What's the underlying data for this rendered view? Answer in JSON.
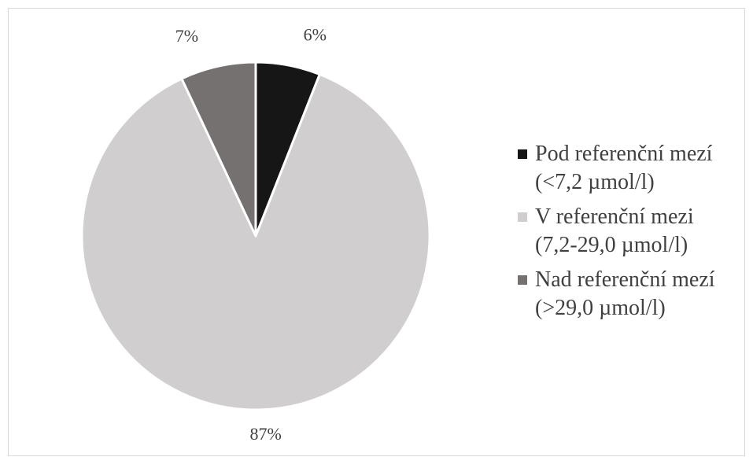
{
  "chart_data": {
    "type": "pie",
    "title": "",
    "slices": [
      {
        "label": "Pod referenční mezí\n(<7,2 µmol/l)",
        "value": 6,
        "value_label": "6%",
        "color": "#161616"
      },
      {
        "label": "V referenční mezi\n(7,2-29,0  µmol/l)",
        "value": 87,
        "value_label": "87%",
        "color": "#d0cecf"
      },
      {
        "label": "Nad referenční mezí\n(>29,0  µmol/l)",
        "value": 7,
        "value_label": "7%",
        "color": "#767171"
      }
    ],
    "start_angle": "12 o'clock",
    "direction": "clockwise",
    "legend_position": "right"
  }
}
